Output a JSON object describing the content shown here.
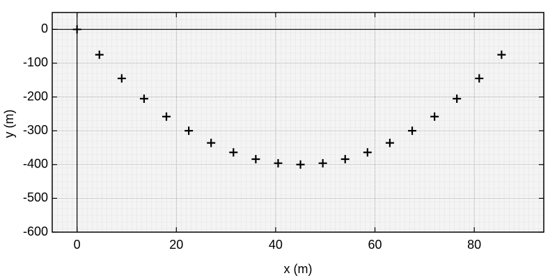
{
  "chart_data": {
    "type": "scatter",
    "x_label": "x (m)",
    "y_label": "y (m)",
    "x": [
      0,
      4.5,
      9,
      13.5,
      18,
      22.5,
      27,
      31.5,
      36,
      40.5,
      45,
      49.5,
      54,
      58.5,
      63,
      67.5,
      72,
      76.5,
      81,
      85.5
    ],
    "values": [
      0,
      -75,
      -145,
      -205,
      -258,
      -300,
      -336,
      -364,
      -384,
      -396,
      -400,
      -396,
      -384,
      -364,
      -336,
      -300,
      -258,
      -205,
      -145,
      -75
    ],
    "color": "#000000",
    "marker": "plus",
    "xlim": [
      -5,
      94
    ],
    "xticks": [
      0,
      20,
      40,
      60,
      80
    ],
    "ylim": [
      -600,
      50
    ],
    "yticks": [
      -600,
      -500,
      -400,
      -300,
      -200,
      -100,
      0
    ],
    "grid": true
  }
}
